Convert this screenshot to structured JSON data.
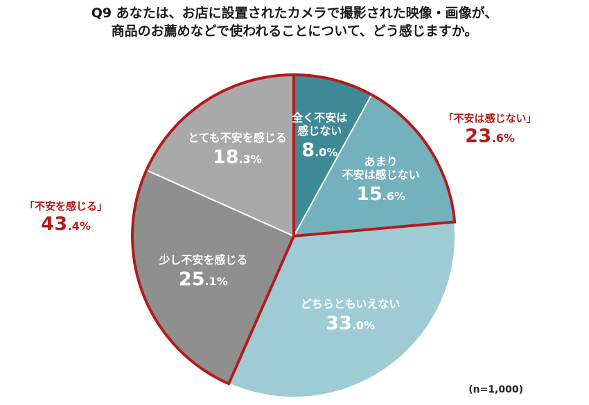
{
  "chart_data": {
    "type": "pie",
    "title": "Q9 あなたは、お店に設置されたカメラで撮影された映像・画像が、",
    "subtitle": "商品のお薦めなどで使われることについて、どう感じますか。",
    "slices": [
      {
        "label_lines": [
          "全く不安は",
          "感じない"
        ],
        "int": "8",
        "dec": ".0%",
        "value": 8.0,
        "color": "#3e8a97"
      },
      {
        "label_lines": [
          "あまり",
          "不安は感じない"
        ],
        "int": "15",
        "dec": ".6%",
        "value": 15.6,
        "color": "#73b1bc"
      },
      {
        "label_lines": [
          "どちらともいえない"
        ],
        "int": "33",
        "dec": ".0%",
        "value": 33.0,
        "color": "#9fcbd4"
      },
      {
        "label_lines": [
          "少し不安を感じる"
        ],
        "int": "25",
        "dec": ".1%",
        "value": 25.1,
        "color": "#8f8f8f"
      },
      {
        "label_lines": [
          "とても不安を感じる"
        ],
        "int": "18",
        "dec": ".3%",
        "value": 18.3,
        "color": "#a9a9a9"
      }
    ],
    "groups": [
      {
        "label": "「不安は感じない」",
        "int": "23",
        "dec": ".6%",
        "value": 23.6,
        "color": "#b51a1a"
      },
      {
        "label": "「不安を感じる」",
        "int": "43",
        "dec": ".4%",
        "value": 43.4,
        "color": "#b51a1a"
      }
    ],
    "note": "(n=1,000)"
  }
}
